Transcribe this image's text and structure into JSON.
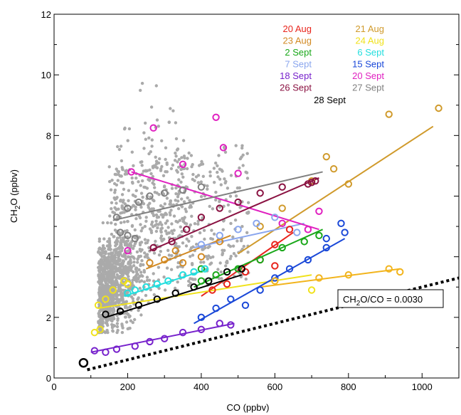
{
  "chart_data": {
    "type": "scatter",
    "xlabel": "CO (ppbv)",
    "ylabel_main": "CH",
    "ylabel_sub": "2",
    "ylabel_rest": "O (ppbv)",
    "xlim": [
      0,
      1100
    ],
    "ylim": [
      0,
      12
    ],
    "x_ticks": [
      0,
      200,
      400,
      600,
      800,
      1000
    ],
    "y_ticks": [
      0,
      2,
      4,
      6,
      8,
      10,
      12
    ],
    "background_color": "#aaaaaa",
    "background_points": {
      "description_count": 1600,
      "x_range": [
        90,
        650
      ],
      "y_range": [
        1.5,
        12
      ]
    },
    "reference_line": {
      "slope": 0.003,
      "x": [
        90,
        1100
      ],
      "label_main": "CH",
      "label_sub": "2",
      "label_rest": "O/CO = 0.0030"
    },
    "series": [
      {
        "name": "20 Aug",
        "color": "#e8241c",
        "points": [
          [
            430,
            2.9
          ],
          [
            470,
            3.1
          ],
          [
            520,
            3.5
          ],
          [
            560,
            3.9
          ],
          [
            600,
            4.4
          ],
          [
            640,
            4.9
          ],
          [
            600,
            3.7
          ]
        ],
        "fit": [
          [
            400,
            2.7
          ],
          [
            650,
            4.8
          ]
        ]
      },
      {
        "name": "21 Aug",
        "color": "#d09a2b",
        "points": [
          [
            700,
            6.5
          ],
          [
            740,
            7.3
          ],
          [
            760,
            6.9
          ],
          [
            800,
            6.4
          ],
          [
            910,
            8.7
          ],
          [
            1045,
            8.9
          ],
          [
            560,
            5.0
          ],
          [
            620,
            5.6
          ]
        ],
        "fit": [
          [
            500,
            4.1
          ],
          [
            1030,
            8.3
          ]
        ]
      },
      {
        "name": "23 Aug",
        "color": "#d28a24",
        "points": [
          [
            260,
            3.8
          ],
          [
            300,
            3.9
          ],
          [
            330,
            4.2
          ],
          [
            350,
            3.8
          ],
          [
            400,
            4.0
          ],
          [
            450,
            4.5
          ]
        ],
        "fit": [
          [
            250,
            3.6
          ],
          [
            480,
            4.7
          ]
        ]
      },
      {
        "name": "24 Aug",
        "color": "#f0e21c",
        "points": [
          [
            120,
            2.4
          ],
          [
            140,
            2.6
          ],
          [
            160,
            2.9
          ],
          [
            190,
            3.2
          ],
          [
            200,
            3.1
          ],
          [
            110,
            1.5
          ],
          [
            125,
            1.6
          ],
          [
            700,
            2.9
          ]
        ],
        "fit": [
          [
            120,
            2.3
          ],
          [
            700,
            3.4
          ]
        ]
      },
      {
        "name": "2 Sept",
        "color": "#1aa81a",
        "points": [
          [
            400,
            3.2
          ],
          [
            440,
            3.4
          ],
          [
            500,
            3.6
          ],
          [
            560,
            3.9
          ],
          [
            620,
            4.3
          ],
          [
            680,
            4.5
          ],
          [
            720,
            4.7
          ],
          [
            400,
            3.6
          ]
        ],
        "fit": [
          [
            380,
            3.0
          ],
          [
            730,
            4.9
          ]
        ]
      },
      {
        "name": "6 Sept",
        "color": "#22dede",
        "points": [
          [
            200,
            2.8
          ],
          [
            220,
            2.9
          ],
          [
            250,
            3.0
          ],
          [
            280,
            3.1
          ],
          [
            310,
            3.2
          ],
          [
            350,
            3.4
          ],
          [
            380,
            3.5
          ],
          [
            410,
            3.6
          ]
        ],
        "fit": [
          [
            190,
            2.7
          ],
          [
            420,
            3.6
          ]
        ]
      },
      {
        "name": "7 Sept",
        "color": "#8aa6ee",
        "points": [
          [
            400,
            4.4
          ],
          [
            450,
            4.7
          ],
          [
            500,
            4.9
          ],
          [
            550,
            5.1
          ],
          [
            600,
            5.3
          ],
          [
            660,
            4.8
          ]
        ],
        "fit": [
          [
            380,
            4.3
          ],
          [
            680,
            5.1
          ]
        ]
      },
      {
        "name": "15 Sept",
        "color": "#1a48d8",
        "points": [
          [
            400,
            2.0
          ],
          [
            440,
            2.3
          ],
          [
            480,
            2.6
          ],
          [
            520,
            2.4
          ],
          [
            560,
            2.9
          ],
          [
            600,
            3.3
          ],
          [
            640,
            3.6
          ],
          [
            690,
            3.9
          ],
          [
            740,
            4.3
          ],
          [
            780,
            5.1
          ],
          [
            790,
            4.8
          ],
          [
            740,
            4.6
          ]
        ],
        "fit": [
          [
            380,
            1.8
          ],
          [
            790,
            4.6
          ]
        ]
      },
      {
        "name": "18 Sept",
        "color": "#7722cc",
        "points": [
          [
            110,
            0.9
          ],
          [
            140,
            0.85
          ],
          [
            170,
            0.95
          ],
          [
            220,
            1.05
          ],
          [
            260,
            1.2
          ],
          [
            300,
            1.3
          ],
          [
            350,
            1.5
          ],
          [
            400,
            1.6
          ],
          [
            450,
            1.8
          ],
          [
            480,
            1.75
          ]
        ],
        "fit": [
          [
            100,
            0.85
          ],
          [
            490,
            1.8
          ]
        ]
      },
      {
        "name": "20 Sept",
        "color": "#e020c0",
        "points": [
          [
            210,
            6.8
          ],
          [
            270,
            8.25
          ],
          [
            350,
            7.05
          ],
          [
            440,
            8.6
          ],
          [
            460,
            7.6
          ],
          [
            500,
            6.75
          ],
          [
            620,
            5.1
          ],
          [
            690,
            4.9
          ],
          [
            720,
            5.5
          ],
          [
            200,
            4.2
          ]
        ],
        "fit": [
          [
            210,
            6.8
          ],
          [
            720,
            4.9
          ]
        ]
      },
      {
        "name": "26 Sept",
        "color": "#8a1242",
        "points": [
          [
            270,
            4.3
          ],
          [
            320,
            4.5
          ],
          [
            360,
            4.9
          ],
          [
            400,
            5.3
          ],
          [
            450,
            5.6
          ],
          [
            500,
            5.8
          ],
          [
            560,
            6.1
          ],
          [
            620,
            6.3
          ],
          [
            690,
            6.4
          ],
          [
            700,
            6.45
          ],
          [
            710,
            6.5
          ]
        ],
        "fit": [
          [
            260,
            4.2
          ],
          [
            720,
            6.6
          ]
        ]
      },
      {
        "name": "27 Sept",
        "color": "#808080",
        "points": [
          [
            170,
            5.3
          ],
          [
            200,
            5.6
          ],
          [
            230,
            5.8
          ],
          [
            260,
            6.0
          ],
          [
            300,
            6.1
          ],
          [
            350,
            6.2
          ],
          [
            400,
            6.3
          ],
          [
            180,
            4.8
          ],
          [
            200,
            4.7
          ],
          [
            220,
            4.6
          ]
        ],
        "fit": [
          [
            160,
            5.2
          ],
          [
            730,
            6.8
          ]
        ]
      },
      {
        "name": "28 Sept",
        "color": "#000000",
        "points": [
          [
            140,
            2.1
          ],
          [
            180,
            2.2
          ],
          [
            230,
            2.4
          ],
          [
            280,
            2.6
          ],
          [
            330,
            2.8
          ],
          [
            380,
            3.0
          ],
          [
            420,
            3.2
          ],
          [
            470,
            3.5
          ],
          [
            510,
            3.6
          ]
        ],
        "fit": [
          [
            140,
            2.0
          ],
          [
            510,
            3.4
          ]
        ]
      },
      {
        "name": "",
        "color": "#f2b41c",
        "points": [
          [
            600,
            3.2
          ],
          [
            720,
            3.3
          ],
          [
            800,
            3.4
          ],
          [
            910,
            3.6
          ],
          [
            940,
            3.5
          ]
        ],
        "fit": [
          [
            560,
            3.0
          ],
          [
            940,
            3.6
          ]
        ]
      },
      {
        "name": "",
        "color": "#000000",
        "points": [
          [
            80,
            0.5
          ]
        ],
        "fit": []
      }
    ],
    "legend": {
      "placement": "top-right",
      "columns": [
        [
          "20 Aug",
          "23 Aug",
          "2 Sept",
          "7 Sept",
          "18 Sept",
          "26 Sept"
        ],
        [
          "21 Aug",
          "24 Aug",
          "6 Sept",
          "15 Sept",
          "20 Sept",
          "27 Sept"
        ]
      ],
      "last": "28 Sept"
    }
  }
}
